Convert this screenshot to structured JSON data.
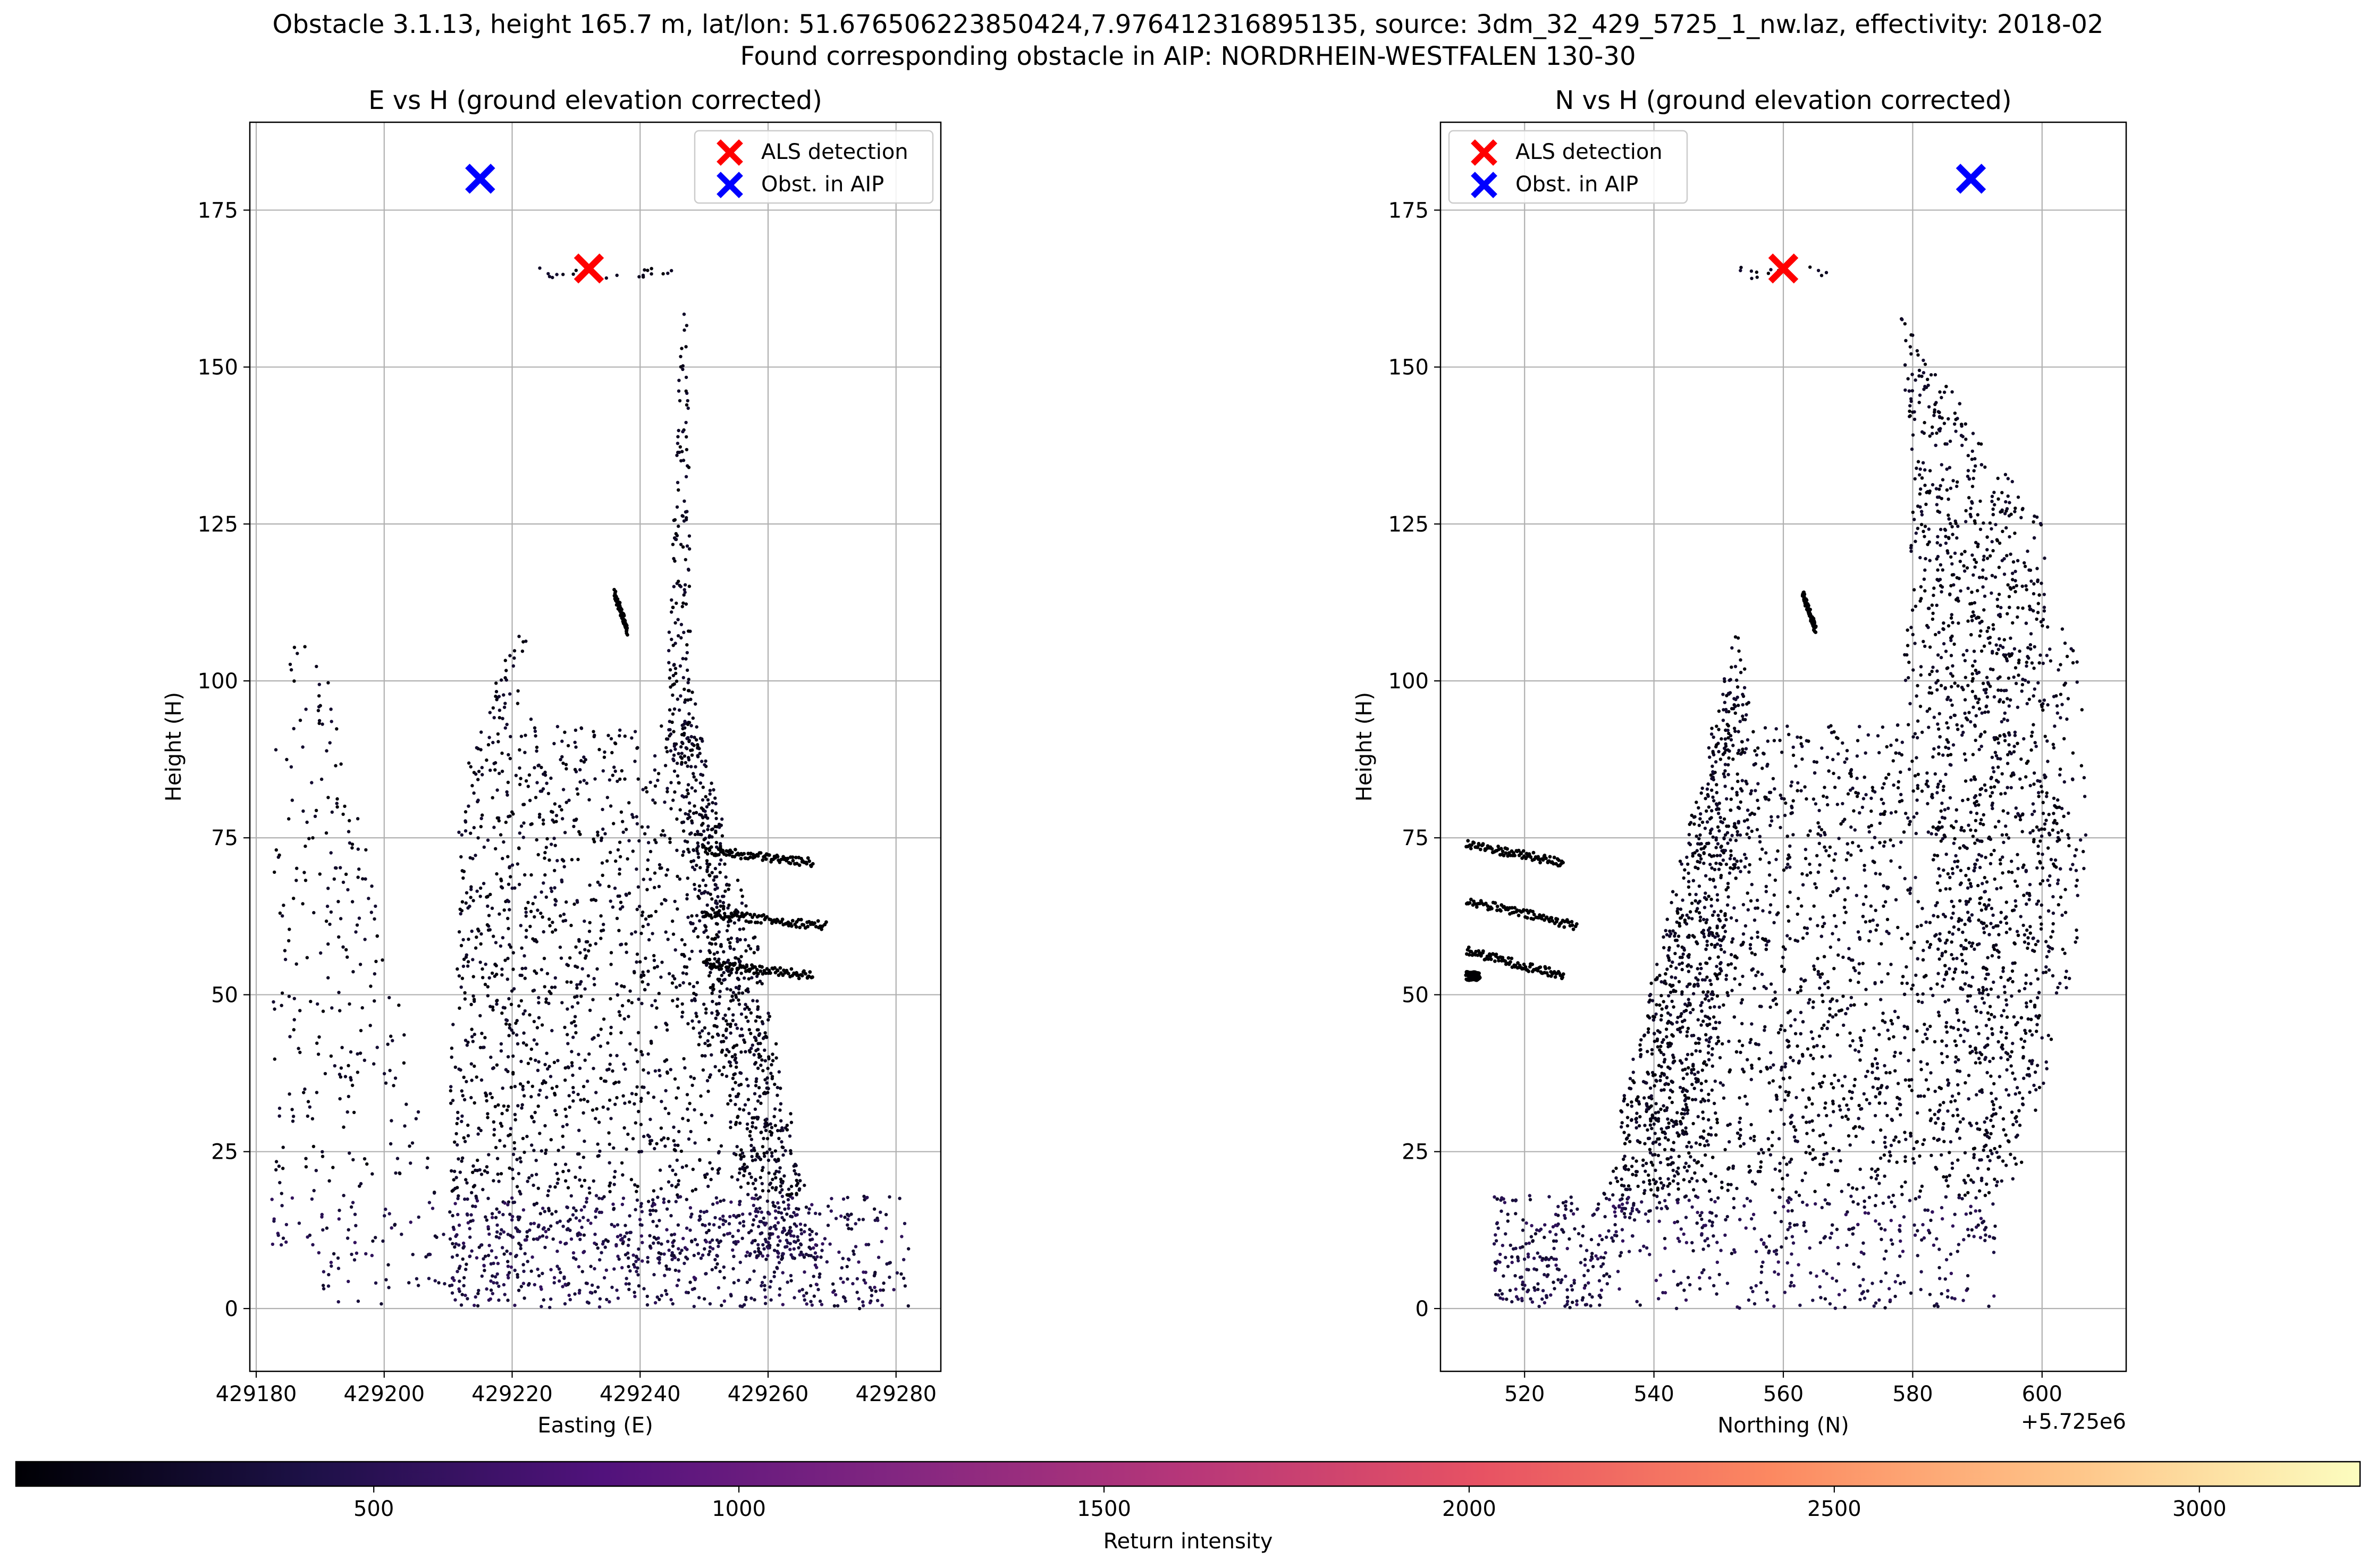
{
  "figure": {
    "title_line1": "Obstacle 3.1.13, height 165.7 m, lat/lon: 51.676506223850424,7.976412316895135, source: 3dm_32_429_5725_1_nw.laz, effectivity: 2018-02",
    "title_line2": "Found corresponding obstacle in AIP: NORDRHEIN-WESTFALEN 130-30"
  },
  "chart_data": [
    {
      "type": "scatter",
      "title": "E vs H (ground elevation corrected)",
      "xlabel": "Easting (E)",
      "ylabel": "Height (H)",
      "xlim": [
        429179,
        429287
      ],
      "ylim": [
        -10,
        189
      ],
      "xticks": [
        429180,
        429200,
        429220,
        429240,
        429260,
        429280
      ],
      "xtick_labels": [
        "429180",
        "429200",
        "429220",
        "429240",
        "429260",
        "429280"
      ],
      "yticks": [
        0,
        25,
        50,
        75,
        100,
        125,
        150,
        175
      ],
      "ytick_labels": [
        "0",
        "25",
        "50",
        "75",
        "100",
        "125",
        "150",
        "175"
      ],
      "grid": true,
      "legend_position": "top-right",
      "legend": [
        {
          "label": "ALS detection",
          "color": "#ff0000",
          "marker": "x"
        },
        {
          "label": "Obst. in AIP",
          "color": "#0000ff",
          "marker": "x"
        }
      ],
      "series": [
        {
          "name": "ALS detection",
          "points": [
            [
              429232,
              165.7
            ]
          ],
          "color": "#ff0000"
        },
        {
          "name": "Obst. in AIP",
          "points": [
            [
              429215,
              180
            ]
          ],
          "color": "#0000ff"
        }
      ],
      "point_cloud_regions": [
        {
          "desc": "roof line",
          "polygon": [
            [
              429220,
              164
            ],
            [
              429245,
              164
            ],
            [
              429245,
              166
            ],
            [
              429220,
              166
            ]
          ],
          "density": 0.45
        },
        {
          "desc": "mast",
          "polygon": [
            [
              429244,
              95
            ],
            [
              429246.5,
              159
            ],
            [
              429247.5,
              158
            ],
            [
              429248,
              95
            ]
          ],
          "density": 0.8
        },
        {
          "desc": "tower body",
          "polygon": [
            [
              429210,
              30
            ],
            [
              429212,
              85
            ],
            [
              429222,
              112
            ],
            [
              429223,
              93
            ],
            [
              429243,
              93
            ],
            [
              429248,
              95
            ],
            [
              429258,
              60
            ],
            [
              429268,
              8
            ],
            [
              429210,
              8
            ]
          ],
          "density": 0.45
        },
        {
          "desc": "shadowed face",
          "polygon": [
            [
              429244,
              93
            ],
            [
              429248,
              100
            ],
            [
              429257,
              55
            ],
            [
              429268,
              8
            ],
            [
              429258,
              8
            ]
          ],
          "density": 0.9
        },
        {
          "desc": "left edge points",
          "polygon": [
            [
              429182,
              10
            ],
            [
              429183,
              90
            ],
            [
              429186,
              108
            ],
            [
              429192,
              100
            ],
            [
              429198,
              70
            ],
            [
              429204,
              40
            ],
            [
              429210,
              10
            ]
          ],
          "density": 0.18
        },
        {
          "desc": "base block",
          "polygon": [
            [
              429210,
              0
            ],
            [
              429210,
              18
            ],
            [
              429282,
              18
            ],
            [
              429282,
              0
            ]
          ],
          "density": 0.35
        },
        {
          "desc": "ground strip",
          "polygon": [
            [
              429188,
              0
            ],
            [
              429188,
              9
            ],
            [
              429282,
              9
            ],
            [
              429282,
              0
            ]
          ],
          "density": 0.2
        }
      ],
      "point_cloud_lines": [
        [
          [
            429250,
            73
          ],
          [
            429267,
            71
          ]
        ],
        [
          [
            429250,
            63
          ],
          [
            429269,
            61
          ]
        ],
        [
          [
            429250,
            55
          ],
          [
            429267,
            53
          ]
        ],
        [
          [
            429236,
            114
          ],
          [
            429238,
            108
          ]
        ]
      ]
    },
    {
      "type": "scatter",
      "title": "N vs H (ground elevation corrected)",
      "xlabel": "Northing (N)",
      "ylabel": "Height (H)",
      "offset_text": "+5.725e6",
      "xlim": [
        5725507,
        5725613
      ],
      "ylim": [
        -10,
        189
      ],
      "xticks": [
        5725520,
        5725540,
        5725560,
        5725580,
        5725600
      ],
      "xtick_labels": [
        "520",
        "540",
        "560",
        "580",
        "600"
      ],
      "yticks": [
        0,
        25,
        50,
        75,
        100,
        125,
        150,
        175
      ],
      "ytick_labels": [
        "0",
        "25",
        "50",
        "75",
        "100",
        "125",
        "150",
        "175"
      ],
      "grid": true,
      "legend_position": "top-left",
      "legend": [
        {
          "label": "ALS detection",
          "color": "#ff0000",
          "marker": "x"
        },
        {
          "label": "Obst. in AIP",
          "color": "#0000ff",
          "marker": "x"
        }
      ],
      "series": [
        {
          "name": "ALS detection",
          "points": [
            [
              5725560,
              165.7
            ]
          ],
          "color": "#ff0000"
        },
        {
          "name": "Obst. in AIP",
          "points": [
            [
              5725589,
              180
            ]
          ],
          "color": "#0000ff"
        }
      ],
      "point_cloud_regions": [
        {
          "desc": "roof line",
          "polygon": [
            [
              5725553,
              164
            ],
            [
              5725568,
              164
            ],
            [
              5725568,
              166
            ],
            [
              5725553,
              166
            ]
          ],
          "density": 0.45
        },
        {
          "desc": "tower body",
          "polygon": [
            [
              5725533,
              15
            ],
            [
              5725553,
              105
            ],
            [
              5725556,
              93
            ],
            [
              5725578,
              93
            ],
            [
              5725580,
              130
            ],
            [
              5725578,
              159
            ],
            [
              5725600,
              125
            ],
            [
              5725604,
              70
            ],
            [
              5725597,
              30
            ],
            [
              5725590,
              9
            ],
            [
              5725533,
              9
            ]
          ],
          "density": 0.45
        },
        {
          "desc": "shadowed face",
          "polygon": [
            [
              5725531,
              15
            ],
            [
              5725553,
              110
            ],
            [
              5725555,
              95
            ],
            [
              5725548,
              30
            ],
            [
              5725545,
              15
            ]
          ],
          "density": 0.9
        },
        {
          "desc": "right fan",
          "polygon": [
            [
              5725578,
              159
            ],
            [
              5725596,
              125
            ],
            [
              5725608,
              100
            ],
            [
              5725606,
              60
            ],
            [
              5725598,
              25
            ],
            [
              5725592,
              9
            ],
            [
              5725585,
              20
            ],
            [
              5725582,
              95
            ]
          ],
          "density": 0.28
        },
        {
          "desc": "base block",
          "polygon": [
            [
              5725515,
              0
            ],
            [
              5725515,
              18
            ],
            [
              5725533,
              18
            ],
            [
              5725533,
              0
            ]
          ],
          "density": 0.6
        },
        {
          "desc": "ground strip",
          "polygon": [
            [
              5725515,
              0
            ],
            [
              5725515,
              9
            ],
            [
              5725593,
              9
            ],
            [
              5725593,
              0
            ]
          ],
          "density": 0.25
        }
      ],
      "point_cloud_lines": [
        [
          [
            5725511,
            74
          ],
          [
            5725526,
            71
          ]
        ],
        [
          [
            5725511,
            65
          ],
          [
            5725528,
            61
          ]
        ],
        [
          [
            5725511,
            57
          ],
          [
            5725526,
            53
          ]
        ],
        [
          [
            5725563,
            114
          ],
          [
            5725565,
            108
          ]
        ],
        [
          [
            5725511,
            53
          ],
          [
            5725513,
            53
          ]
        ]
      ]
    }
  ],
  "colorbar": {
    "label": "Return intensity",
    "range": [
      10,
      3220
    ],
    "ticks": [
      500,
      1000,
      1500,
      2000,
      2500,
      3000
    ],
    "tick_labels": [
      "500",
      "1000",
      "1500",
      "2000",
      "2500",
      "3000"
    ],
    "colormap": "magma",
    "colormap_stops": [
      "#000004",
      "#1d1147",
      "#51127c",
      "#822681",
      "#b73779",
      "#e75263",
      "#fc8961",
      "#fec488",
      "#fcfdbf"
    ]
  }
}
